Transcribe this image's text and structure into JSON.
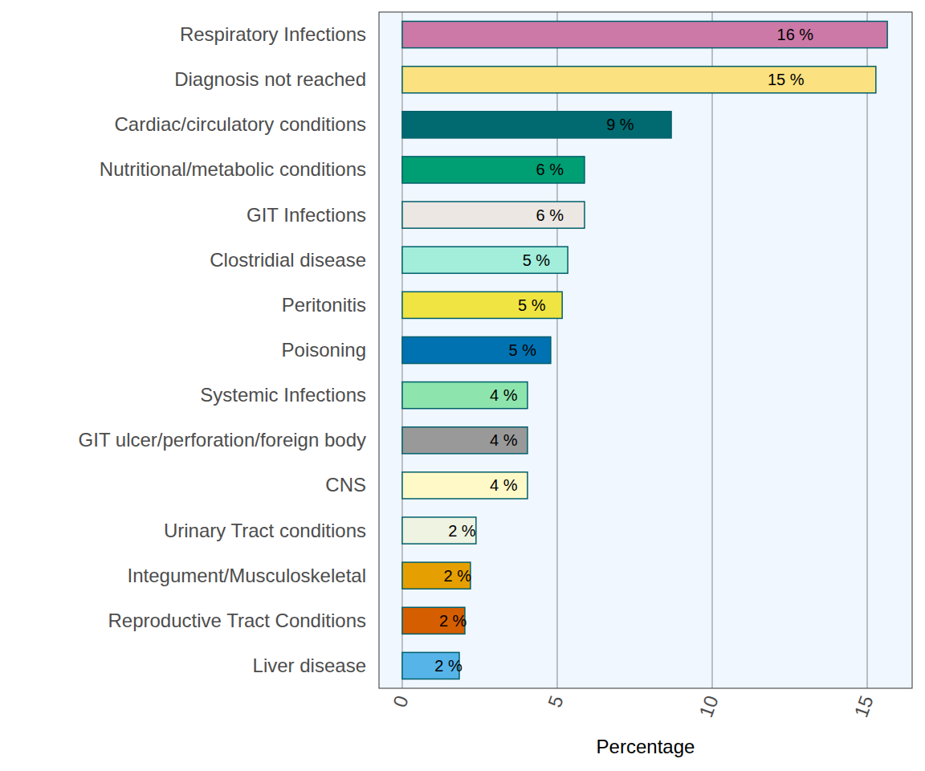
{
  "chart_data": {
    "type": "bar",
    "orientation": "horizontal",
    "categories": [
      "Respiratory Infections",
      "Diagnosis not reached",
      "Cardiac/circulatory conditions",
      "Nutritional/metabolic conditions",
      "GIT Infections",
      "Clostridial disease",
      "Peritonitis",
      "Poisoning",
      "Systemic Infections",
      "GIT ulcer/perforation/foreign body",
      "CNS",
      "Urinary Tract conditions",
      "Integument/Musculoskeletal",
      "Reproductive Tract Conditions",
      "Liver disease"
    ],
    "values": [
      15.65,
      15.28,
      8.68,
      5.88,
      5.88,
      5.34,
      5.16,
      4.79,
      4.04,
      4.04,
      4.04,
      2.38,
      2.2,
      2.02,
      1.84
    ],
    "value_labels": [
      "16 %",
      "15 %",
      "9 %",
      "6 %",
      "6 %",
      "5 %",
      "5 %",
      "5 %",
      "4 %",
      "4 %",
      "4 %",
      "2 %",
      "2 %",
      "2 %",
      "2 %"
    ],
    "colors": [
      "#CC79A7",
      "#FBE17F",
      "#006A70",
      "#009E73",
      "#ECE7E2",
      "#A3EEDB",
      "#F0E442",
      "#0072B2",
      "#8DE5AD",
      "#999999",
      "#FFF9C8",
      "#EEF3E2",
      "#E69F00",
      "#D55E00",
      "#56B4E9"
    ],
    "x_label": "Percentage",
    "xlim": [
      -0.75,
      16.45
    ],
    "xticks": [
      0,
      5,
      10,
      15
    ],
    "grid": true,
    "data_labels": true
  }
}
